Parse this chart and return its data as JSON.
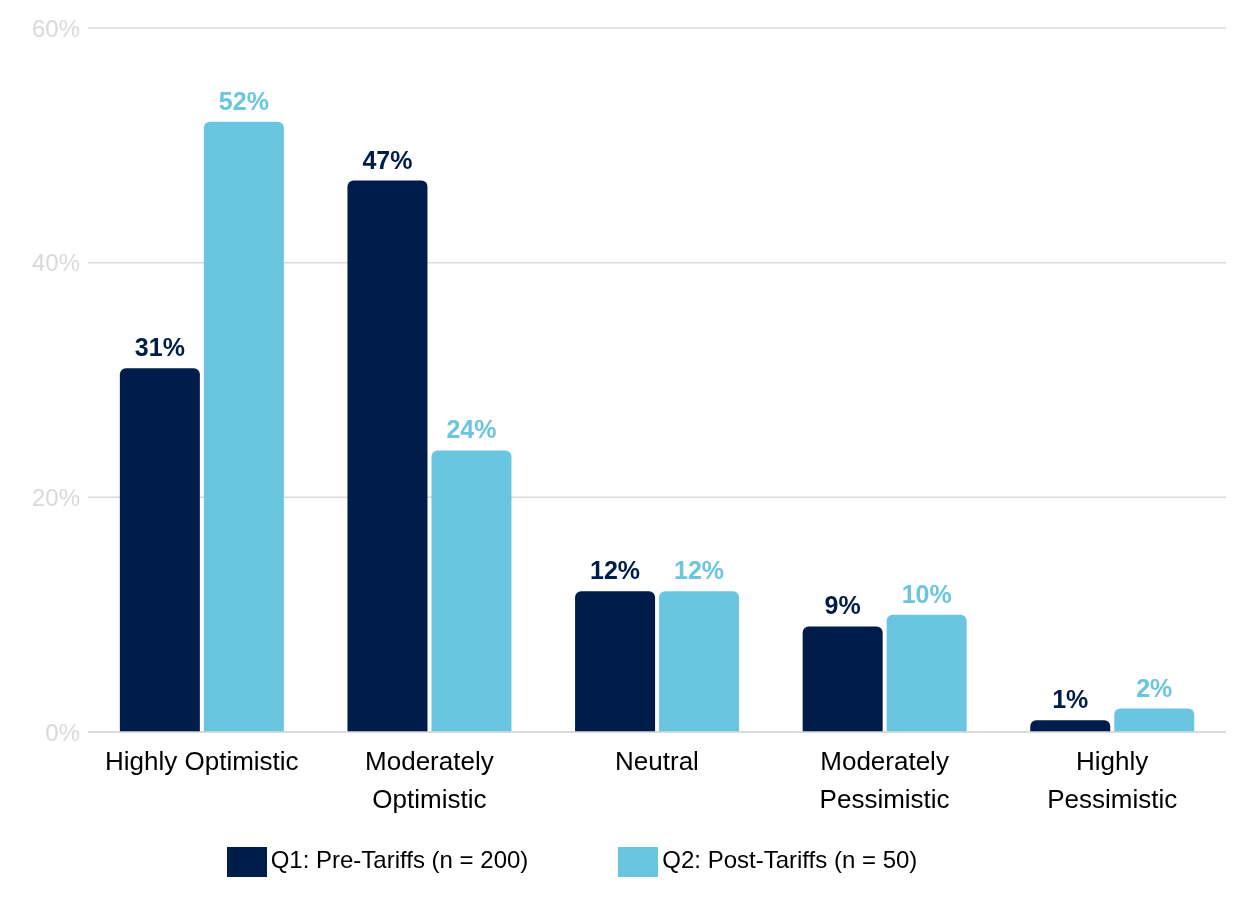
{
  "chart_data": {
    "type": "bar",
    "categories": [
      "Highly Optimistic",
      "Moderately Optimistic",
      "Neutral",
      "Moderately Pessimistic",
      "Highly Pessimistic"
    ],
    "series": [
      {
        "name": "Q1: Pre-Tariffs (n = 200)",
        "color": "#001c4a",
        "values": [
          31,
          47,
          12,
          9,
          1
        ],
        "value_labels": [
          "31%",
          "47%",
          "12%",
          "9%",
          "1%"
        ]
      },
      {
        "name": "Q2: Post-Tariffs (n = 50)",
        "color": "#6ac6e0",
        "values": [
          52,
          24,
          12,
          10,
          2
        ],
        "value_labels": [
          "52%",
          "24%",
          "12%",
          "10%",
          "2%"
        ]
      }
    ],
    "ylim": [
      0,
      60
    ],
    "yticks": [
      {
        "value": 0,
        "label": "0%"
      },
      {
        "value": 20,
        "label": "20%"
      },
      {
        "value": 40,
        "label": "40%"
      },
      {
        "value": 60,
        "label": "60%"
      }
    ],
    "grid": "y",
    "legend": "bottom"
  }
}
